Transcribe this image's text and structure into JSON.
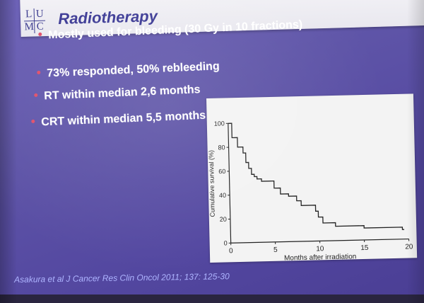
{
  "logo": {
    "letters": [
      "L",
      "U",
      "M",
      "C"
    ],
    "color": "#3b3b8f"
  },
  "slide": {
    "title": "Radiotherapy",
    "bullets": [
      {
        "text": "Mostly used for bleeding (30 Gy in 10 fractions)"
      },
      {
        "text": "73% responded, 50% rebleeding"
      },
      {
        "text": "RT within median 2,6 months"
      },
      {
        "text": "CRT within median 5,5 months"
      }
    ],
    "bullet_color": "#e0506a",
    "citation": "Asakura et al J Cancer Res Clin Oncol 2011; 137: 125-30"
  },
  "chart_data": {
    "type": "line",
    "title": "",
    "xlabel": "Months after irradiation",
    "ylabel": "Cumulative survival (%)",
    "xlim": [
      0,
      20
    ],
    "ylim": [
      0,
      100
    ],
    "xticks": [
      "0",
      "5",
      "10",
      "15",
      "20"
    ],
    "yticks": [
      "0",
      "20",
      "40",
      "60",
      "80",
      "100"
    ],
    "series": [
      {
        "step": true,
        "x": [
          0,
          0.4,
          0.4,
          1.0,
          1.0,
          1.6,
          1.6,
          1.9,
          1.9,
          2.2,
          2.2,
          2.5,
          2.5,
          2.8,
          2.8,
          3.1,
          3.1,
          3.6,
          3.6,
          5.0,
          5.0,
          5.7,
          5.7,
          6.6,
          6.6,
          7.5,
          7.5,
          8.0,
          8.0,
          9.6,
          9.6,
          9.9,
          9.9,
          10.4,
          10.4,
          11.8,
          11.8,
          15.0,
          15.0,
          19.3,
          19.3,
          19.5
        ],
        "y": [
          100,
          100,
          88,
          88,
          80,
          80,
          75,
          75,
          67,
          67,
          62,
          62,
          57,
          57,
          55,
          55,
          53,
          53,
          51,
          51,
          45,
          45,
          40,
          40,
          38,
          38,
          34,
          34,
          30,
          30,
          25,
          25,
          20,
          20,
          15,
          15,
          12,
          12,
          10,
          10,
          8,
          8
        ]
      }
    ]
  }
}
